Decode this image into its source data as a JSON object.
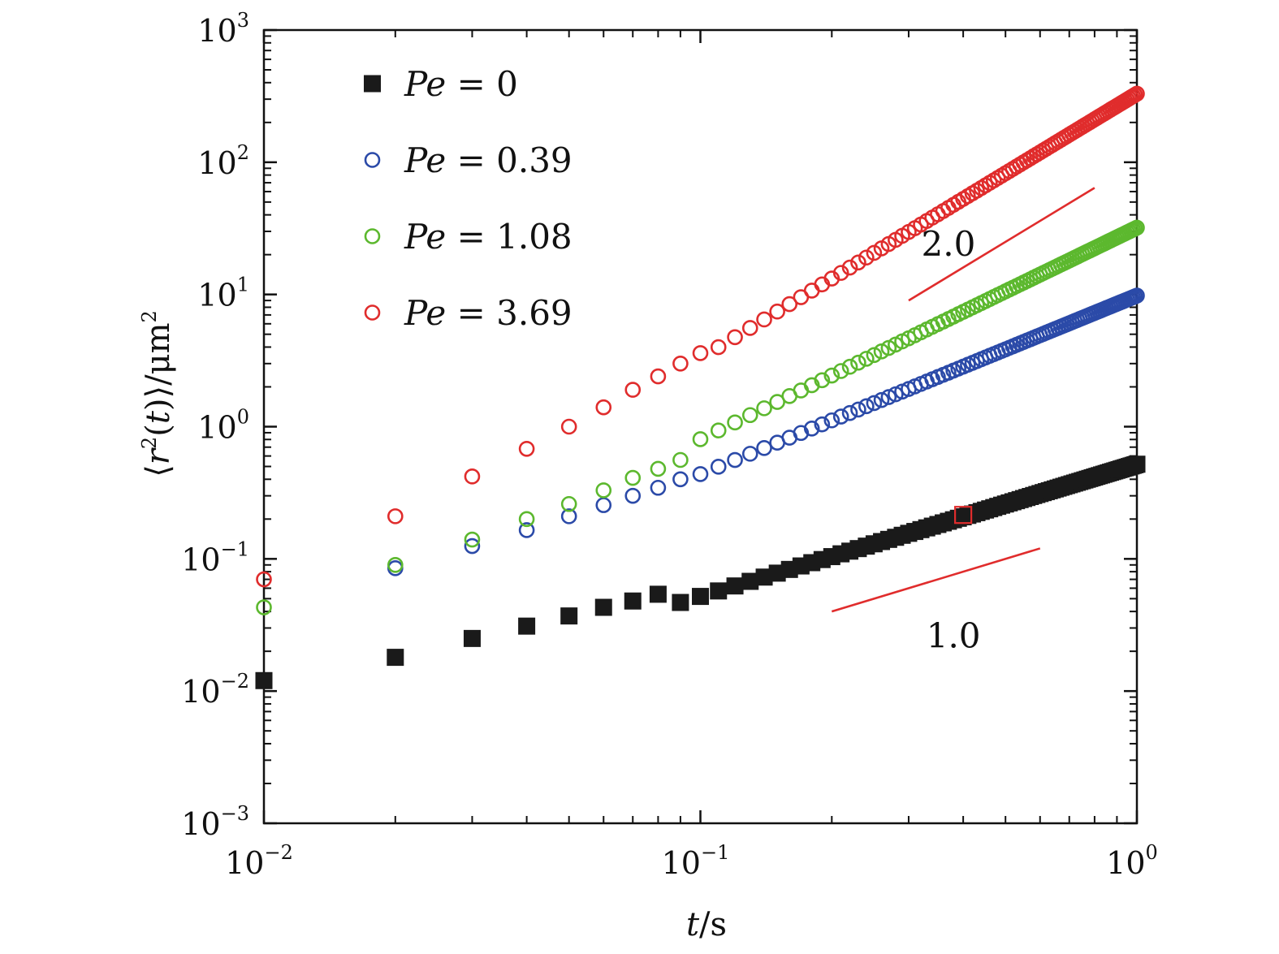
{
  "chart_data": {
    "type": "scatter",
    "title": "",
    "xscale": "log",
    "yscale": "log",
    "xlim": [
      0.01,
      1
    ],
    "ylim": [
      0.001,
      1000
    ],
    "xlabel": {
      "var": "t",
      "unit": "/s"
    },
    "ylabel": {
      "pre": "⟨",
      "var": "r",
      "sup": "2",
      "mid": "(",
      "var2": "t",
      "post": ")⟩",
      "unit": "/μm",
      "unit_sup": "2"
    },
    "x_ticks": [
      {
        "value": 0.01,
        "base": "10",
        "exp": "−2"
      },
      {
        "value": 0.1,
        "base": "10",
        "exp": "−1"
      },
      {
        "value": 1,
        "base": "10",
        "exp": "0"
      }
    ],
    "y_ticks": [
      {
        "value": 0.001,
        "base": "10",
        "exp": "−3"
      },
      {
        "value": 0.01,
        "base": "10",
        "exp": "−2"
      },
      {
        "value": 0.1,
        "base": "10",
        "exp": "−1"
      },
      {
        "value": 1,
        "base": "10",
        "exp": "0"
      },
      {
        "value": 10,
        "base": "10",
        "exp": "1"
      },
      {
        "value": 100,
        "base": "10",
        "exp": "2"
      },
      {
        "value": 1000,
        "base": "10",
        "exp": "3"
      }
    ],
    "legend_position": "top-left",
    "series": [
      {
        "name": "Pe = 0",
        "label_var": "Pe",
        "label_eq": "=",
        "label_val": "0",
        "marker": "filled-square",
        "color": "#1a1a1a",
        "a": 0.52,
        "alpha": 1.0,
        "points": [
          [
            0.01,
            0.012
          ],
          [
            0.02,
            0.018
          ],
          [
            0.03,
            0.025
          ],
          [
            0.04,
            0.031
          ],
          [
            0.05,
            0.037
          ],
          [
            0.06,
            0.043
          ],
          [
            0.07,
            0.048
          ],
          [
            0.08,
            0.054
          ]
        ]
      },
      {
        "name": "Pe = 0.39",
        "label_var": "Pe",
        "label_eq": "=",
        "label_val": "0.39",
        "marker": "open-circle",
        "color": "#2b4aa8",
        "a": 9.8,
        "alpha": 1.35,
        "points": [
          [
            0.02,
            0.085
          ],
          [
            0.03,
            0.125
          ],
          [
            0.04,
            0.165
          ],
          [
            0.05,
            0.21
          ],
          [
            0.06,
            0.255
          ],
          [
            0.07,
            0.3
          ],
          [
            0.08,
            0.345
          ],
          [
            0.09,
            0.4
          ]
        ]
      },
      {
        "name": "Pe = 1.08",
        "label_var": "Pe",
        "label_eq": "=",
        "label_val": "1.08",
        "marker": "open-circle",
        "color": "#5cb82e",
        "a": 32,
        "alpha": 1.6,
        "points": [
          [
            0.01,
            0.043
          ],
          [
            0.02,
            0.09
          ],
          [
            0.03,
            0.14
          ],
          [
            0.04,
            0.2
          ],
          [
            0.05,
            0.26
          ],
          [
            0.06,
            0.33
          ],
          [
            0.07,
            0.41
          ],
          [
            0.08,
            0.48
          ],
          [
            0.09,
            0.56
          ]
        ]
      },
      {
        "name": "Pe = 3.69",
        "label_var": "Pe",
        "label_eq": "=",
        "label_val": "3.69",
        "marker": "open-circle",
        "color": "#e02c2c",
        "a": 330,
        "alpha": 2.0,
        "points": [
          [
            0.01,
            0.07
          ],
          [
            0.02,
            0.21
          ],
          [
            0.03,
            0.42
          ],
          [
            0.04,
            0.68
          ],
          [
            0.05,
            1.0
          ],
          [
            0.06,
            1.4
          ],
          [
            0.07,
            1.9
          ],
          [
            0.08,
            2.4
          ],
          [
            0.09,
            3.0
          ],
          [
            0.1,
            3.6
          ]
        ]
      }
    ],
    "slope_guides": [
      {
        "label": "2.0",
        "x1": 0.3,
        "y1": 9.0,
        "x2": 0.8,
        "y2": 64.0,
        "label_x": 0.37,
        "label_y": 24
      },
      {
        "label": "1.0",
        "x1": 0.2,
        "y1": 0.04,
        "x2": 0.6,
        "y2": 0.12,
        "label_x": 0.38,
        "label_y": 0.026
      }
    ],
    "highlight_marker": {
      "x": 0.4,
      "y": 0.215,
      "color": "#e02c2c"
    },
    "guide_color": "#e02c2c"
  }
}
